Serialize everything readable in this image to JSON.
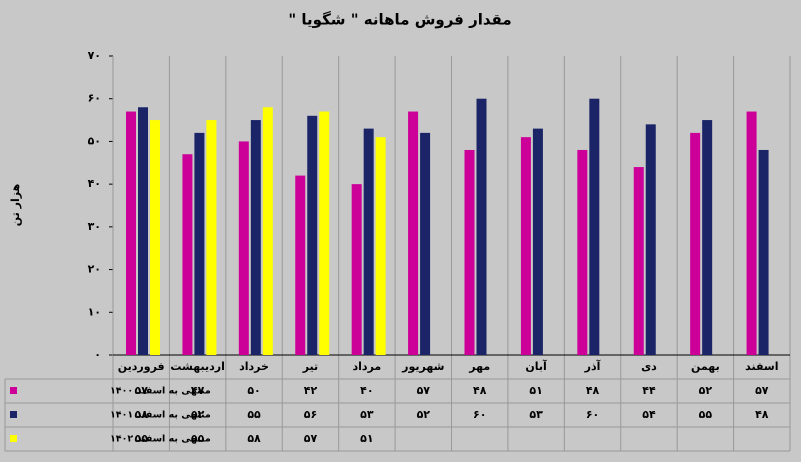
{
  "chart_data": {
    "type": "bar",
    "title": "مقدار فروش ماهانه \" شگويا \"",
    "y_label": "هزار تن",
    "categories": [
      "فروردین",
      "اردیبهشت",
      "خرداد",
      "تیر",
      "مرداد",
      "شهریور",
      "مهر",
      "آبان",
      "آذر",
      "دی",
      "بهمن",
      "اسفند"
    ],
    "series": [
      {
        "name": "منتهی به اسفند ۱۴۰۰",
        "color": "#cc0099",
        "values": [
          57,
          47,
          50,
          42,
          40,
          57,
          48,
          51,
          48,
          44,
          52,
          57
        ],
        "value_labels": [
          "۵۷",
          "۴۷",
          "۵۰",
          "۴۲",
          "۴۰",
          "۵۷",
          "۴۸",
          "۵۱",
          "۴۸",
          "۴۴",
          "۵۲",
          "۵۷"
        ]
      },
      {
        "name": "منتهی به اسفند ۱۴۰۱",
        "color": "#1a2466",
        "values": [
          58,
          52,
          55,
          56,
          53,
          52,
          60,
          53,
          60,
          54,
          55,
          48
        ],
        "value_labels": [
          "۵۸",
          "۵۲",
          "۵۵",
          "۵۶",
          "۵۳",
          "۵۲",
          "۶۰",
          "۵۳",
          "۶۰",
          "۵۴",
          "۵۵",
          "۴۸"
        ]
      },
      {
        "name": "منتهی به اسفند ۱۴۰۲",
        "color": "#ffff00",
        "values": [
          55,
          55,
          58,
          57,
          51,
          null,
          null,
          null,
          null,
          null,
          null,
          null
        ],
        "value_labels": [
          "۵۵",
          "۵۵",
          "۵۸",
          "۵۷",
          "۵۱",
          null,
          null,
          null,
          null,
          null,
          null,
          null
        ]
      }
    ],
    "ylim": [
      0,
      70
    ],
    "yticks": [
      {
        "value": 0,
        "label": "۰"
      },
      {
        "value": 10,
        "label": "۱۰"
      },
      {
        "value": 20,
        "label": "۲۰"
      },
      {
        "value": 30,
        "label": "۳۰"
      },
      {
        "value": 40,
        "label": "۴۰"
      },
      {
        "value": 50,
        "label": "۵۰"
      },
      {
        "value": 60,
        "label": "۶۰"
      },
      {
        "value": 70,
        "label": "۷۰"
      }
    ]
  }
}
